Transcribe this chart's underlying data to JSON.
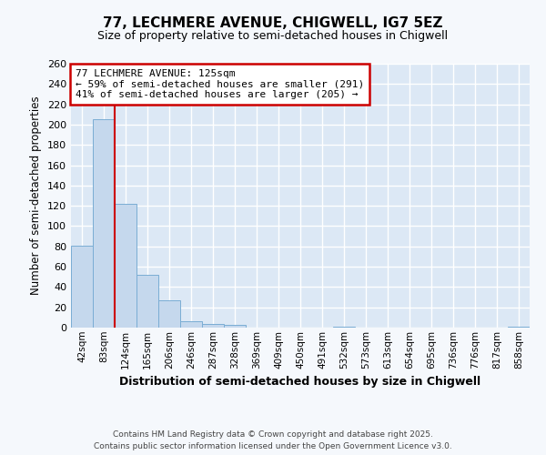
{
  "title1": "77, LECHMERE AVENUE, CHIGWELL, IG7 5EZ",
  "title2": "Size of property relative to semi-detached houses in Chigwell",
  "xlabel": "Distribution of semi-detached houses by size in Chigwell",
  "ylabel": "Number of semi-detached properties",
  "categories": [
    "42sqm",
    "83sqm",
    "124sqm",
    "165sqm",
    "206sqm",
    "246sqm",
    "287sqm",
    "328sqm",
    "369sqm",
    "409sqm",
    "450sqm",
    "491sqm",
    "532sqm",
    "573sqm",
    "613sqm",
    "654sqm",
    "695sqm",
    "736sqm",
    "776sqm",
    "817sqm",
    "858sqm"
  ],
  "values": [
    81,
    205,
    122,
    52,
    27,
    6,
    4,
    3,
    0,
    0,
    0,
    0,
    1,
    0,
    0,
    0,
    0,
    0,
    0,
    0,
    1
  ],
  "bar_color": "#c5d8ed",
  "bar_edge_color": "#7aadd4",
  "subject_line_color": "#cc0000",
  "annotation_text": "77 LECHMERE AVENUE: 125sqm\n← 59% of semi-detached houses are smaller (291)\n41% of semi-detached houses are larger (205) →",
  "annotation_box_color": "#ffffff",
  "annotation_box_edge": "#cc0000",
  "ylim": [
    0,
    260
  ],
  "yticks": [
    0,
    20,
    40,
    60,
    80,
    100,
    120,
    140,
    160,
    180,
    200,
    220,
    240,
    260
  ],
  "bg_color": "#dce8f5",
  "fig_bg_color": "#f5f8fc",
  "footer_text": "Contains HM Land Registry data © Crown copyright and database right 2025.\nContains public sector information licensed under the Open Government Licence v3.0."
}
